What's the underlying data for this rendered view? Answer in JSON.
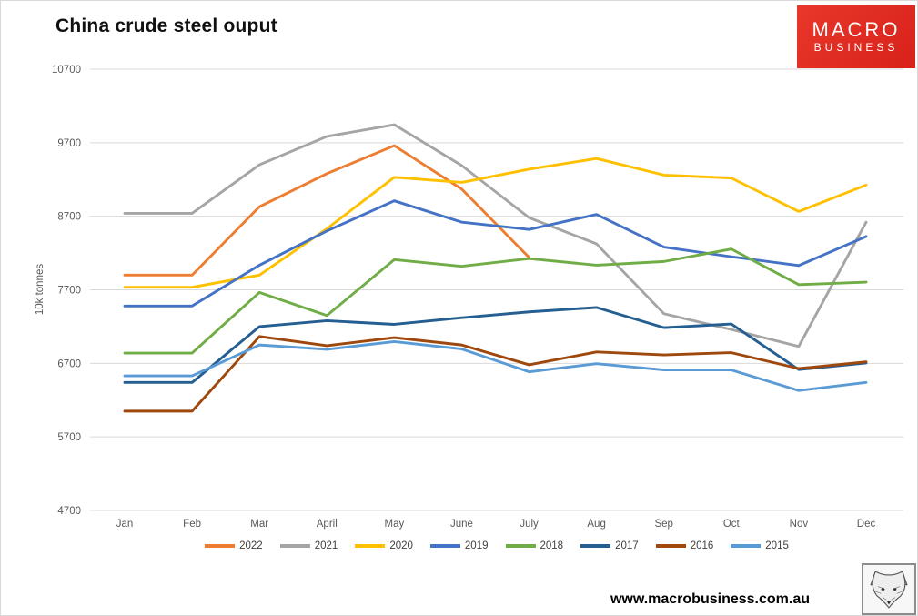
{
  "page": {
    "title": "China crude steel ouput",
    "footer_url": "www.macrobusiness.com.au"
  },
  "logo": {
    "line1": "MACRO",
    "line2": "BUSINESS",
    "bg_color": "#d6221a"
  },
  "chart_data": {
    "type": "line",
    "title": "China crude steel ouput",
    "xlabel": "",
    "ylabel": "10k tonnes",
    "ylim": [
      4700,
      10700
    ],
    "yticks": [
      10700,
      9700,
      8700,
      7700,
      6700,
      5700,
      4700
    ],
    "grid": "horizontal",
    "grid_color": "#d9d9d9",
    "axis_text_color": "#595959",
    "legend_position": "bottom",
    "categories": [
      "Jan",
      "Feb",
      "Mar",
      "April",
      "May",
      "June",
      "July",
      "Aug",
      "Sep",
      "Oct",
      "Nov",
      "Dec"
    ],
    "series": [
      {
        "name": "2022",
        "color": "#ED7D31",
        "values": [
          7900,
          7900,
          8830,
          9280,
          9660,
          9070,
          8140,
          null,
          null,
          null,
          null,
          null
        ]
      },
      {
        "name": "2021",
        "color": "#A5A5A5",
        "values": [
          8740,
          8740,
          9400,
          9785,
          9945,
          9390,
          8680,
          8325,
          7375,
          7160,
          6930,
          8620
        ]
      },
      {
        "name": "2020",
        "color": "#FFC000",
        "values": [
          7735,
          7735,
          7900,
          8530,
          9230,
          9160,
          9340,
          9485,
          9260,
          9220,
          8765,
          9125
        ]
      },
      {
        "name": "2019",
        "color": "#4472C4",
        "values": [
          7480,
          7480,
          8035,
          8500,
          8910,
          8620,
          8520,
          8725,
          8280,
          8150,
          8030,
          8425
        ]
      },
      {
        "name": "2018",
        "color": "#70AD47",
        "values": [
          6840,
          6840,
          7665,
          7350,
          8110,
          8020,
          8125,
          8035,
          8085,
          8255,
          7770,
          7805
        ]
      },
      {
        "name": "2017",
        "color": "#255E91",
        "values": [
          6440,
          6440,
          7200,
          7280,
          7230,
          7320,
          7400,
          7460,
          7185,
          7235,
          6615,
          6705
        ]
      },
      {
        "name": "2016",
        "color": "#9E480E",
        "values": [
          6050,
          6050,
          7065,
          6940,
          7050,
          6950,
          6680,
          6855,
          6815,
          6845,
          6630,
          6720
        ]
      },
      {
        "name": "2015",
        "color": "#5B9BD5",
        "values": [
          6530,
          6530,
          6950,
          6890,
          6995,
          6895,
          6585,
          6695,
          6610,
          6610,
          6330,
          6440
        ]
      }
    ]
  }
}
